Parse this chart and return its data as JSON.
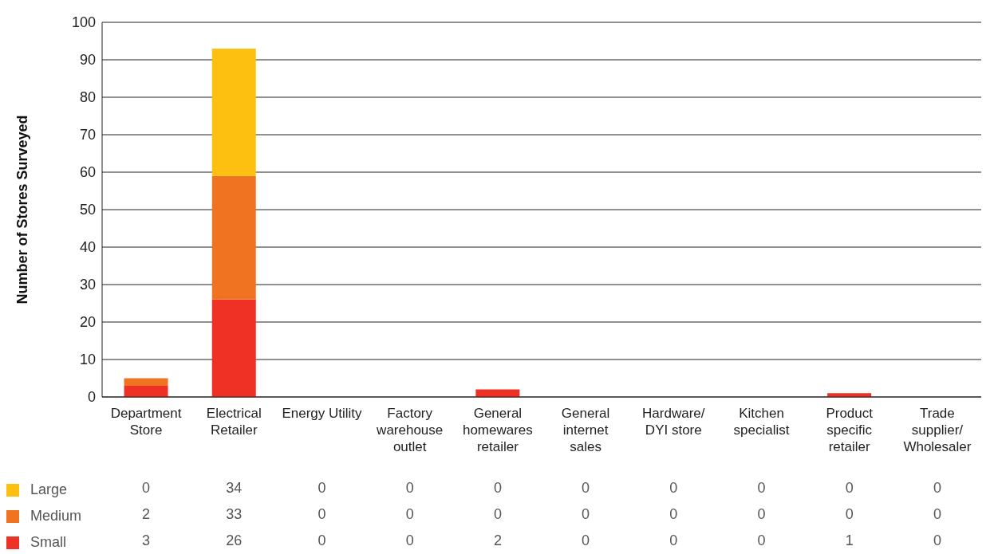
{
  "chart_data": {
    "type": "bar",
    "stacked": true,
    "ylabel": "Number of Stores Surveyed",
    "categories": [
      "Department Store",
      "Electrical Retailer",
      "Energy Utility",
      "Factory warehouse outlet",
      "General homewares retailer",
      "General internet sales",
      "Hardware/ DYI store",
      "Kitchen specialist",
      "Product specific retailer",
      "Trade supplier/ Wholesaler"
    ],
    "series": [
      {
        "name": "Small",
        "color": "#ee3124",
        "values": [
          3,
          26,
          0,
          0,
          2,
          0,
          0,
          0,
          1,
          0
        ]
      },
      {
        "name": "Medium",
        "color": "#f07322",
        "values": [
          2,
          33,
          0,
          0,
          0,
          0,
          0,
          0,
          0,
          0
        ]
      },
      {
        "name": "Large",
        "color": "#fdc010",
        "values": [
          0,
          34,
          0,
          0,
          0,
          0,
          0,
          0,
          0,
          0
        ]
      }
    ],
    "ylim": [
      0,
      100
    ],
    "yticks": [
      0,
      10,
      20,
      30,
      40,
      50,
      60,
      70,
      80,
      90,
      100
    ],
    "grid": "y",
    "legend": "bottom",
    "data_labels": true
  }
}
